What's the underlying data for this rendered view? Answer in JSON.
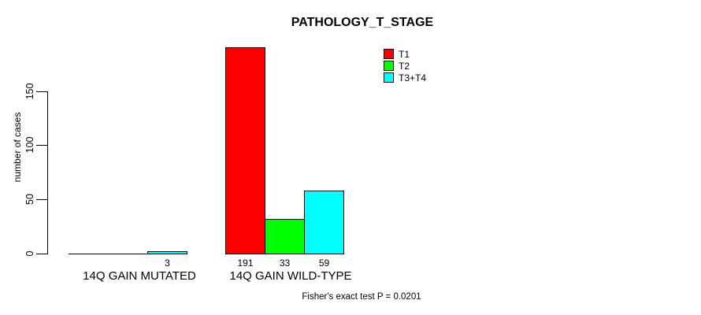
{
  "chart_data": {
    "type": "bar",
    "title": "PATHOLOGY_T_STAGE",
    "ylabel": "number of cases",
    "xlabel": "",
    "ylim": [
      0,
      150
    ],
    "yticks": [
      0,
      50,
      100,
      150
    ],
    "grid": false,
    "legend_position": "top-right-inside",
    "categories": [
      "14Q GAIN MUTATED",
      "14Q GAIN WILD-TYPE"
    ],
    "series": [
      {
        "name": "T1",
        "color": "#FF0000",
        "values": [
          0,
          191
        ]
      },
      {
        "name": "T2",
        "color": "#00FF00",
        "values": [
          0,
          33
        ]
      },
      {
        "name": "T3+T4",
        "color": "#00FFFF",
        "values": [
          3,
          59
        ]
      }
    ],
    "bar_value_labels": [
      [
        null,
        null,
        3
      ],
      [
        191,
        33,
        59
      ]
    ],
    "annotation": "Fisher's exact test P = 0.0201"
  },
  "colors": {
    "background": "#FFFFFF",
    "axis": "#000000",
    "text": "#000000",
    "bar_border": "#000000"
  }
}
